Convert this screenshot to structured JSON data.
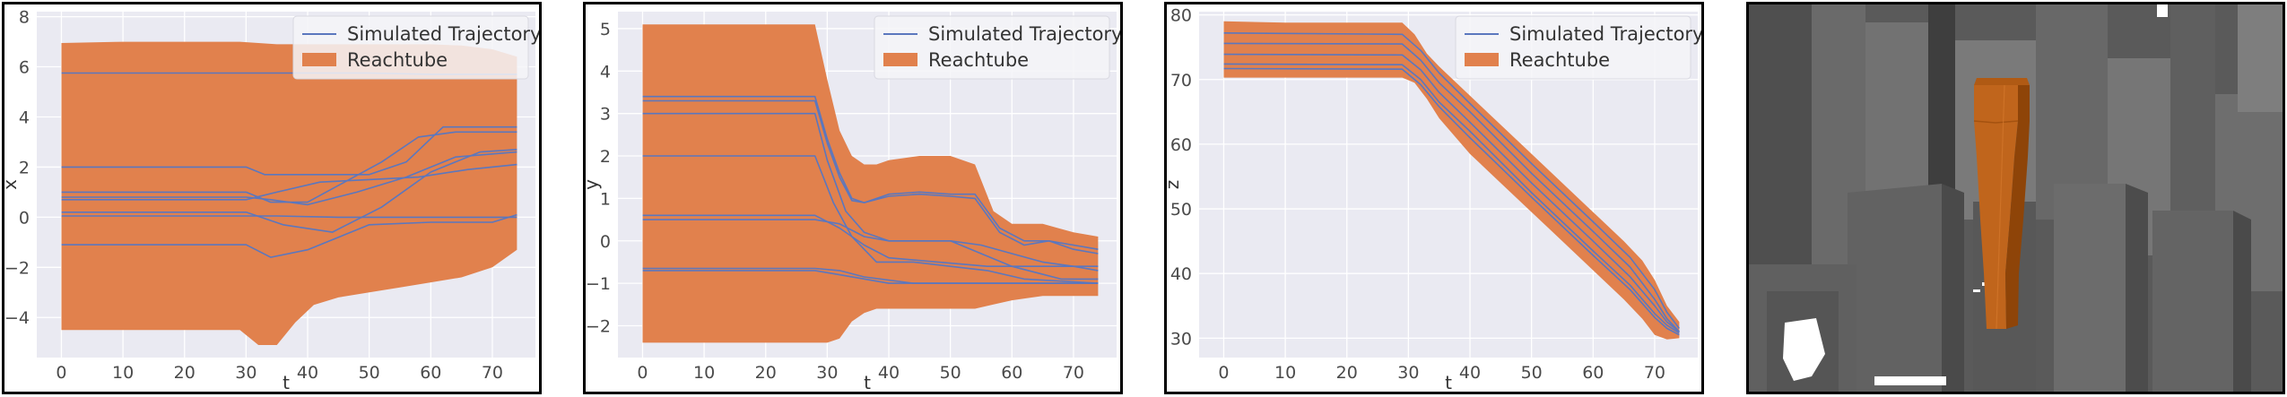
{
  "colors": {
    "plot_bg": "#EAEAF2",
    "grid": "#FFFFFF",
    "reachtube": "#E1814D",
    "trajectory": "#5B77BE",
    "legend_bg": "#F4F4F8"
  },
  "chart_data": [
    {
      "type": "line",
      "xlabel": "t",
      "ylabel": "x",
      "xlim": [
        -4,
        77
      ],
      "ylim": [
        -5.6,
        8.2
      ],
      "xticks": [
        0,
        10,
        20,
        30,
        40,
        50,
        60,
        70
      ],
      "yticks": [
        -4,
        -2,
        0,
        2,
        4,
        6,
        8
      ],
      "grid": true,
      "legend": {
        "position": "top-right",
        "entries": [
          {
            "label": "Simulated Trajectory",
            "kind": "line"
          },
          {
            "label": "Reachtube",
            "kind": "patch"
          }
        ]
      },
      "reachtube": {
        "t": [
          0,
          10,
          20,
          29,
          32,
          35,
          38,
          41,
          45,
          50,
          55,
          60,
          65,
          70,
          74
        ],
        "upper": [
          6.95,
          7.0,
          7.0,
          7.0,
          6.95,
          6.9,
          6.9,
          6.9,
          6.9,
          6.9,
          6.9,
          6.9,
          6.85,
          6.7,
          6.4
        ],
        "lower": [
          -4.5,
          -4.5,
          -4.5,
          -4.5,
          -5.1,
          -5.1,
          -4.2,
          -3.5,
          -3.2,
          -3.0,
          -2.8,
          -2.6,
          -2.4,
          -2.0,
          -1.3
        ]
      },
      "series": [
        {
          "t": [
            0,
            30,
            35,
            40,
            50,
            60,
            74
          ],
          "values": [
            5.75,
            5.75,
            5.75,
            5.75,
            5.75,
            5.7,
            5.7
          ]
        },
        {
          "t": [
            0,
            30,
            33,
            40,
            50,
            56,
            62,
            74
          ],
          "values": [
            2.0,
            2.0,
            1.7,
            1.7,
            1.7,
            2.2,
            3.6,
            3.6
          ]
        },
        {
          "t": [
            0,
            30,
            34,
            40,
            46,
            52,
            58,
            64,
            74
          ],
          "values": [
            1.0,
            1.0,
            0.6,
            0.6,
            1.4,
            2.2,
            3.2,
            3.4,
            3.4
          ]
        },
        {
          "t": [
            0,
            30,
            34,
            40,
            48,
            56,
            64,
            74
          ],
          "values": [
            0.8,
            0.8,
            0.7,
            0.5,
            1.0,
            1.6,
            2.4,
            2.6
          ]
        },
        {
          "t": [
            0,
            30,
            35,
            42,
            50,
            58,
            66,
            74
          ],
          "values": [
            0.7,
            0.7,
            1.0,
            1.4,
            1.5,
            1.6,
            1.9,
            2.1
          ]
        },
        {
          "t": [
            0,
            30,
            36,
            44,
            52,
            60,
            68,
            74
          ],
          "values": [
            0.2,
            0.2,
            -0.3,
            -0.6,
            0.4,
            1.8,
            2.6,
            2.7
          ]
        },
        {
          "t": [
            0,
            30,
            35,
            45,
            55,
            65,
            74
          ],
          "values": [
            0.05,
            0.05,
            0.05,
            0.0,
            0.0,
            0.0,
            0.0
          ]
        },
        {
          "t": [
            0,
            30,
            34,
            40,
            50,
            60,
            70,
            74
          ],
          "values": [
            -1.1,
            -1.1,
            -1.6,
            -1.3,
            -0.3,
            -0.2,
            -0.2,
            0.1
          ]
        }
      ]
    },
    {
      "type": "line",
      "xlabel": "t",
      "ylabel": "y",
      "xlim": [
        -4,
        77
      ],
      "ylim": [
        -2.75,
        5.4
      ],
      "xticks": [
        0,
        10,
        20,
        30,
        40,
        50,
        60,
        70
      ],
      "yticks": [
        -2,
        -1,
        0,
        1,
        2,
        3,
        4,
        5
      ],
      "grid": true,
      "legend": {
        "position": "top-right",
        "entries": [
          {
            "label": "Simulated Trajectory",
            "kind": "line"
          },
          {
            "label": "Reachtube",
            "kind": "patch"
          }
        ]
      },
      "reachtube": {
        "t": [
          0,
          10,
          20,
          28,
          30,
          32,
          34,
          36,
          38,
          40,
          45,
          50,
          54,
          57,
          60,
          65,
          70,
          74
        ],
        "upper": [
          5.1,
          5.1,
          5.1,
          5.1,
          3.8,
          2.6,
          2.0,
          1.8,
          1.8,
          1.9,
          2.0,
          2.0,
          1.8,
          0.7,
          0.4,
          0.4,
          0.2,
          0.1
        ],
        "lower": [
          -2.4,
          -2.4,
          -2.4,
          -2.4,
          -2.4,
          -2.3,
          -1.9,
          -1.7,
          -1.6,
          -1.6,
          -1.6,
          -1.6,
          -1.6,
          -1.5,
          -1.4,
          -1.3,
          -1.3,
          -1.3
        ]
      },
      "series": [
        {
          "t": [
            0,
            28,
            30,
            32,
            34,
            36,
            40,
            45,
            50,
            54,
            58,
            62,
            66,
            70,
            74
          ],
          "values": [
            3.4,
            3.4,
            2.4,
            1.6,
            1.0,
            0.9,
            1.1,
            1.15,
            1.1,
            1.1,
            0.3,
            0.0,
            0.0,
            -0.1,
            -0.2
          ]
        },
        {
          "t": [
            0,
            28,
            30,
            32,
            34,
            36,
            40,
            45,
            50,
            54,
            58,
            62,
            66,
            70,
            74
          ],
          "values": [
            3.3,
            3.3,
            2.3,
            1.5,
            0.95,
            0.9,
            1.05,
            1.1,
            1.05,
            1.0,
            0.2,
            -0.1,
            0.0,
            -0.2,
            -0.3
          ]
        },
        {
          "t": [
            0,
            28,
            30,
            33,
            36,
            40,
            50,
            55,
            60,
            65,
            70,
            74
          ],
          "values": [
            3.0,
            3.0,
            1.9,
            0.7,
            0.2,
            0.0,
            0.0,
            -0.1,
            -0.3,
            -0.5,
            -0.6,
            -0.7
          ]
        },
        {
          "t": [
            0,
            28,
            31,
            34,
            38,
            44,
            50,
            56,
            62,
            68,
            74
          ],
          "values": [
            2.0,
            2.0,
            0.9,
            0.1,
            -0.5,
            -0.5,
            -0.6,
            -0.7,
            -0.9,
            -0.95,
            -1.0
          ]
        },
        {
          "t": [
            0,
            28,
            32,
            36,
            40,
            48,
            56,
            64,
            74
          ],
          "values": [
            0.6,
            0.6,
            0.3,
            -0.1,
            -0.4,
            -0.5,
            -0.6,
            -0.6,
            -0.6
          ]
        },
        {
          "t": [
            0,
            28,
            32,
            36,
            40,
            50,
            60,
            68,
            74
          ],
          "values": [
            0.5,
            0.5,
            0.4,
            0.1,
            0.0,
            0.0,
            -0.6,
            -0.9,
            -0.9
          ]
        },
        {
          "t": [
            0,
            28,
            32,
            36,
            44,
            52,
            60,
            68,
            74
          ],
          "values": [
            -0.65,
            -0.65,
            -0.7,
            -0.85,
            -1.0,
            -1.0,
            -1.0,
            -1.0,
            -1.0
          ]
        },
        {
          "t": [
            0,
            28,
            32,
            40,
            50,
            60,
            70,
            74
          ],
          "values": [
            -0.7,
            -0.7,
            -0.8,
            -1.0,
            -1.0,
            -1.0,
            -1.0,
            -1.0
          ]
        }
      ]
    },
    {
      "type": "line",
      "xlabel": "t",
      "ylabel": "z",
      "xlim": [
        -4,
        77
      ],
      "ylim": [
        27,
        80.5
      ],
      "xticks": [
        0,
        10,
        20,
        30,
        40,
        50,
        60,
        70
      ],
      "yticks": [
        30,
        40,
        50,
        60,
        70,
        80
      ],
      "grid": true,
      "legend": {
        "position": "top-right",
        "entries": [
          {
            "label": "Simulated Trajectory",
            "kind": "line"
          },
          {
            "label": "Reachtube",
            "kind": "patch"
          }
        ]
      },
      "reachtube": {
        "t": [
          0,
          10,
          20,
          29,
          31,
          33,
          35,
          40,
          45,
          50,
          55,
          60,
          65,
          68,
          70,
          72,
          74
        ],
        "upper": [
          79.0,
          78.8,
          78.8,
          78.8,
          77.0,
          74.0,
          72.0,
          67.5,
          63.0,
          58.5,
          54.0,
          49.5,
          45.0,
          42.0,
          39.0,
          35.0,
          32.5
        ],
        "lower": [
          70.3,
          70.3,
          70.3,
          70.3,
          69.5,
          67.0,
          64.0,
          58.5,
          54.0,
          49.5,
          45.0,
          40.5,
          36.0,
          33.0,
          30.5,
          29.8,
          30.0
        ]
      },
      "series": [
        {
          "t": [
            0,
            29,
            32,
            35,
            40,
            50,
            60,
            66,
            70,
            72,
            74
          ],
          "values": [
            77.2,
            77.0,
            74.5,
            71.0,
            66.3,
            57.0,
            48.0,
            42.5,
            37.5,
            34.0,
            31.5
          ]
        },
        {
          "t": [
            0,
            29,
            32,
            35,
            40,
            50,
            60,
            66,
            70,
            72,
            74
          ],
          "values": [
            75.6,
            75.5,
            73.0,
            69.5,
            65.0,
            55.5,
            46.5,
            41.0,
            36.0,
            33.0,
            31.0
          ]
        },
        {
          "t": [
            0,
            29,
            32,
            35,
            40,
            50,
            60,
            66,
            70,
            72,
            74
          ],
          "values": [
            73.9,
            73.8,
            71.5,
            68.0,
            63.4,
            54.0,
            45.0,
            39.5,
            35.0,
            32.5,
            31.0
          ]
        },
        {
          "t": [
            0,
            29,
            32,
            35,
            40,
            50,
            60,
            66,
            70,
            72,
            74
          ],
          "values": [
            72.4,
            72.3,
            70.0,
            66.5,
            62.0,
            52.5,
            43.5,
            38.2,
            33.8,
            32.0,
            30.8
          ]
        },
        {
          "t": [
            0,
            29,
            32,
            35,
            40,
            50,
            60,
            66,
            70,
            72,
            74
          ],
          "values": [
            71.7,
            71.6,
            69.2,
            65.8,
            61.0,
            51.8,
            42.8,
            37.5,
            33.2,
            31.5,
            30.5
          ]
        }
      ]
    }
  ]
}
